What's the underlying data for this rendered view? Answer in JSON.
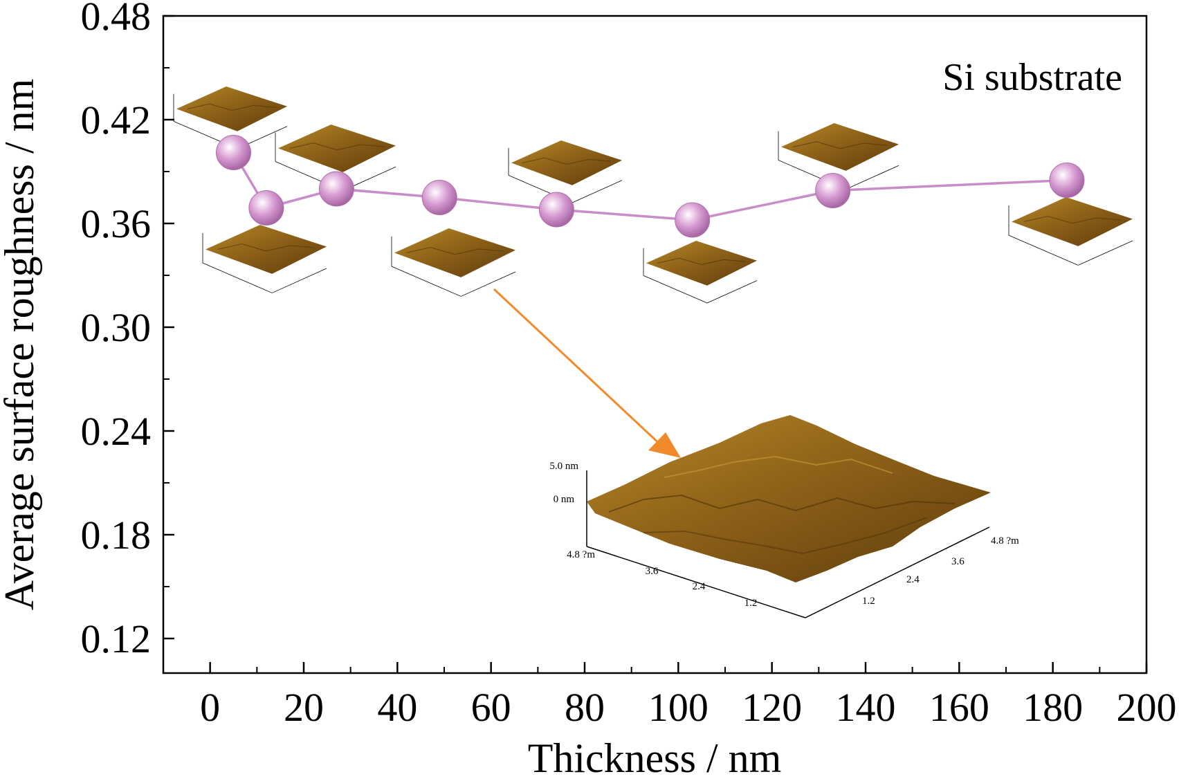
{
  "chart_data": {
    "type": "scatter",
    "xlabel": "Thickness / nm",
    "ylabel": "Average surface roughness / nm",
    "xlim": [
      -10,
      200
    ],
    "ylim": [
      0.1,
      0.48
    ],
    "xticks": [
      "0",
      "20",
      "40",
      "60",
      "80",
      "100",
      "120",
      "140",
      "160",
      "180",
      "200"
    ],
    "yticks": [
      "0.12",
      "0.18",
      "0.24",
      "0.30",
      "0.36",
      "0.42",
      "0.48"
    ],
    "grid": false,
    "annotation": "Si substrate",
    "series": [
      {
        "x": [
          5,
          12,
          27,
          49,
          74,
          103,
          133,
          183
        ],
        "y": [
          0.401,
          0.369,
          0.38,
          0.375,
          0.368,
          0.362,
          0.379,
          0.385
        ],
        "marker_color": "#cc8ec8",
        "line_color": "#c88cc8"
      }
    ],
    "inset_images": [
      {
        "scale_label": "5.0 nm",
        "zero_label": "0 nm",
        "left_axis_labels": [
          "4.8 ?m",
          "3.6",
          "2.4",
          "1.2"
        ],
        "right_axis_labels": [
          "1.2",
          "2.4",
          "3.6",
          "4.8 ?m"
        ]
      }
    ],
    "colors": {
      "afm_dark": "#5e3b0c",
      "afm_mid": "#8e6218",
      "afm_light": "#b7892a",
      "arrow": "#f08a2b"
    }
  }
}
